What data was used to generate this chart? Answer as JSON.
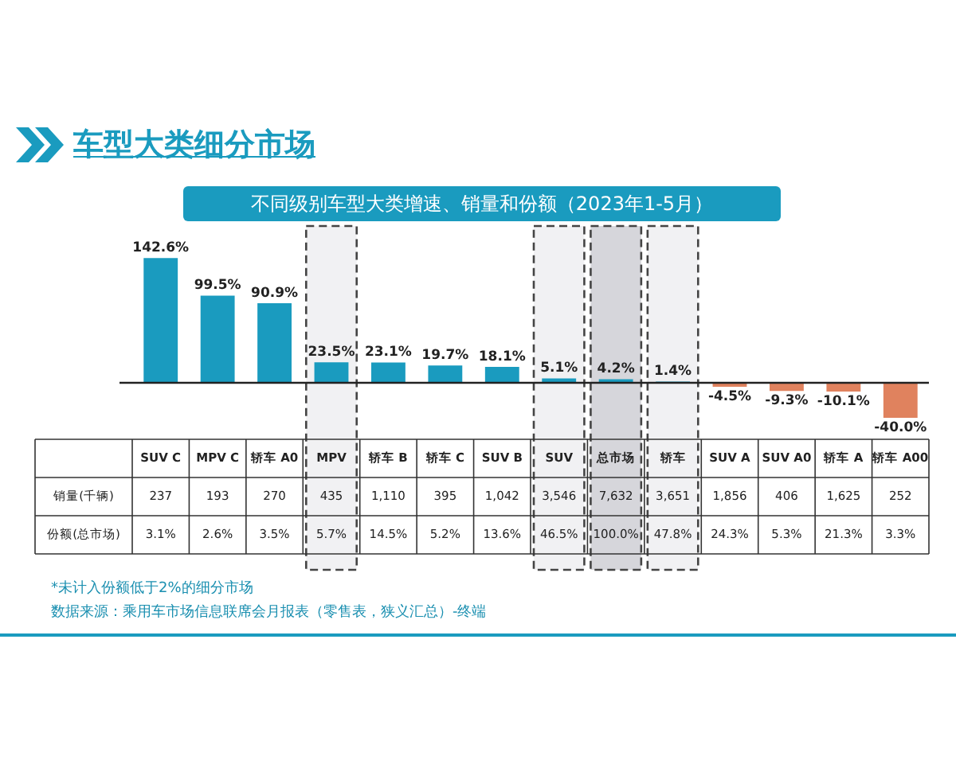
{
  "chart_data": {
    "type": "bar",
    "title": "车型大类细分市场",
    "subtitle": "不同级别车型大类增速、销量和份额（2023年1-5月）",
    "categories": [
      "SUV C",
      "MPV C",
      "轿车 A0",
      "MPV",
      "轿车 B",
      "轿车 C",
      "SUV B",
      "SUV",
      "总市场",
      "轿车",
      "SUV A",
      "SUV A0",
      "轿车 A",
      "轿车 A00"
    ],
    "values": [
      142.6,
      99.5,
      90.9,
      23.5,
      23.1,
      19.7,
      18.1,
      5.1,
      4.2,
      1.4,
      -4.5,
      -9.3,
      -10.1,
      -40.0
    ],
    "value_labels": [
      "142.6%",
      "99.5%",
      "90.9%",
      "23.5%",
      "23.1%",
      "19.7%",
      "18.1%",
      "5.1%",
      "4.2%",
      "1.4%",
      "-4.5%",
      "-9.3%",
      "-10.1%",
      "-40.0%"
    ],
    "colors": [
      "#1a9bbf",
      "#1a9bbf",
      "#1a9bbf",
      "#1a9bbf",
      "#1a9bbf",
      "#1a9bbf",
      "#1a9bbf",
      "#1a9bbf",
      "#1a9bbf",
      "#1a9bbf",
      "#e0825e",
      "#e0825e",
      "#e0825e",
      "#e0825e"
    ],
    "bands": [
      {
        "axis": "x",
        "from": "MPV",
        "to": "MPV",
        "color": "#f1f1f3"
      },
      {
        "axis": "x",
        "from": "SUV",
        "to": "SUV",
        "color": "#f1f1f3"
      },
      {
        "axis": "x",
        "from": "总市场",
        "to": "总市场",
        "color": "#d6d6db"
      },
      {
        "axis": "x",
        "from": "轿车",
        "to": "轿车",
        "color": "#f1f1f3"
      }
    ],
    "annotations": [
      "销量(千辆)",
      "237",
      "193",
      "270",
      "435",
      "1,110",
      "395",
      "1,042",
      "3,546",
      "7,632",
      "3,651",
      "1,856",
      "406",
      "1,625",
      "252",
      "份额(总市场)",
      "3.1%",
      "2.6%",
      "3.5%",
      "5.7%",
      "14.5%",
      "5.2%",
      "13.6%",
      "46.5%",
      "100.0%",
      "47.8%",
      "24.3%",
      "5.3%",
      "21.3%",
      "3.3%",
      "*未计入份额低于2%的细分市场",
      "数据来源：乘用车市场信息联席会月报表（零售表，狭义汇总）-终端"
    ],
    "legend": false
  }
}
